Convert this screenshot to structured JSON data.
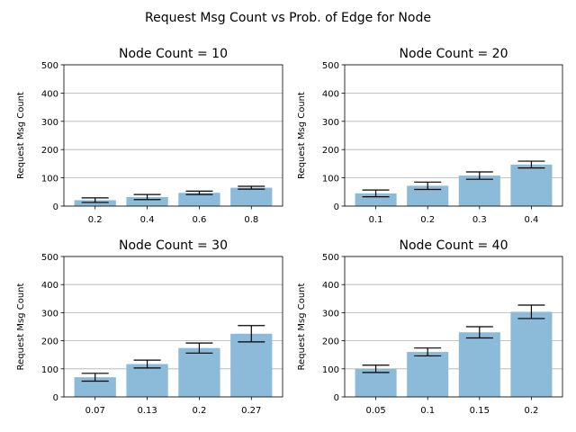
{
  "figure_title": "Request Msg Count vs Prob. of Edge for Node",
  "colors": {
    "bar": "#8cbad9",
    "grid": "#b0b0b0",
    "axis": "#000000",
    "errorbar": "#000000"
  },
  "chart_data": [
    {
      "type": "bar",
      "title": "Node Count = 10",
      "ylabel": "Request Msg Count",
      "ylim": [
        0,
        500
      ],
      "yticks": [
        0,
        100,
        200,
        300,
        400,
        500
      ],
      "grid": "y",
      "categories": [
        "0.2",
        "0.4",
        "0.6",
        "0.8"
      ],
      "values": [
        21,
        32,
        47,
        65
      ],
      "errors": [
        8,
        9,
        6,
        5
      ]
    },
    {
      "type": "bar",
      "title": "Node Count = 20",
      "ylabel": "Request Msg Count",
      "ylim": [
        0,
        500
      ],
      "yticks": [
        0,
        100,
        200,
        300,
        400,
        500
      ],
      "grid": "y",
      "categories": [
        "0.1",
        "0.2",
        "0.3",
        "0.4"
      ],
      "values": [
        45,
        72,
        108,
        147
      ],
      "errors": [
        12,
        13,
        13,
        12
      ]
    },
    {
      "type": "bar",
      "title": "Node Count = 30",
      "ylabel": "Request Msg Count",
      "ylim": [
        0,
        500
      ],
      "yticks": [
        0,
        100,
        200,
        300,
        400,
        500
      ],
      "grid": "y",
      "categories": [
        "0.07",
        "0.13",
        "0.2",
        "0.27"
      ],
      "values": [
        70,
        117,
        174,
        225
      ],
      "errors": [
        14,
        14,
        18,
        29
      ]
    },
    {
      "type": "bar",
      "title": "Node Count = 40",
      "ylabel": "Request Msg Count",
      "ylim": [
        0,
        500
      ],
      "yticks": [
        0,
        100,
        200,
        300,
        400,
        500
      ],
      "grid": "y",
      "categories": [
        "0.05",
        "0.1",
        "0.15",
        "0.2"
      ],
      "values": [
        100,
        160,
        230,
        303
      ],
      "errors": [
        13,
        14,
        20,
        24
      ]
    }
  ]
}
